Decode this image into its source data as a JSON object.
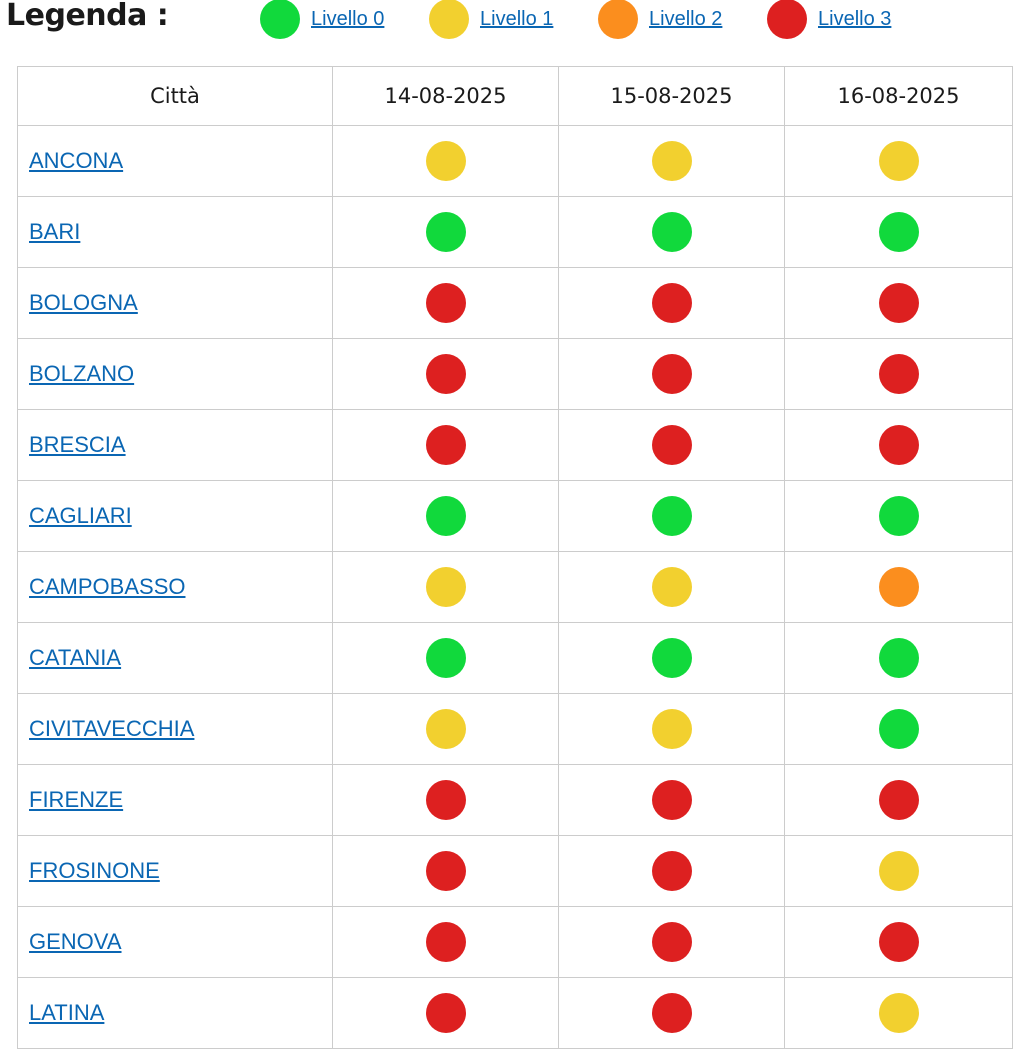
{
  "legend": {
    "title": "Legenda :",
    "levels": [
      {
        "label": "Livello 0",
        "color": "#11d93c"
      },
      {
        "label": "Livello 1",
        "color": "#f2d02f"
      },
      {
        "label": "Livello 2",
        "color": "#fb8e1e"
      },
      {
        "label": "Livello 3",
        "color": "#dd2020"
      }
    ]
  },
  "table": {
    "headers": [
      "Città",
      "14-08-2025",
      "15-08-2025",
      "16-08-2025"
    ],
    "rows": [
      {
        "city": "ANCONA",
        "levels": [
          1,
          1,
          1
        ]
      },
      {
        "city": "BARI",
        "levels": [
          0,
          0,
          0
        ]
      },
      {
        "city": "BOLOGNA",
        "levels": [
          3,
          3,
          3
        ]
      },
      {
        "city": "BOLZANO",
        "levels": [
          3,
          3,
          3
        ]
      },
      {
        "city": "BRESCIA",
        "levels": [
          3,
          3,
          3
        ]
      },
      {
        "city": "CAGLIARI",
        "levels": [
          0,
          0,
          0
        ]
      },
      {
        "city": "CAMPOBASSO",
        "levels": [
          1,
          1,
          2
        ]
      },
      {
        "city": "CATANIA",
        "levels": [
          0,
          0,
          0
        ]
      },
      {
        "city": "CIVITAVECCHIA",
        "levels": [
          1,
          1,
          0
        ]
      },
      {
        "city": "FIRENZE",
        "levels": [
          3,
          3,
          3
        ]
      },
      {
        "city": "FROSINONE",
        "levels": [
          3,
          3,
          1
        ]
      },
      {
        "city": "GENOVA",
        "levels": [
          3,
          3,
          3
        ]
      },
      {
        "city": "LATINA",
        "levels": [
          3,
          3,
          1
        ]
      }
    ]
  }
}
